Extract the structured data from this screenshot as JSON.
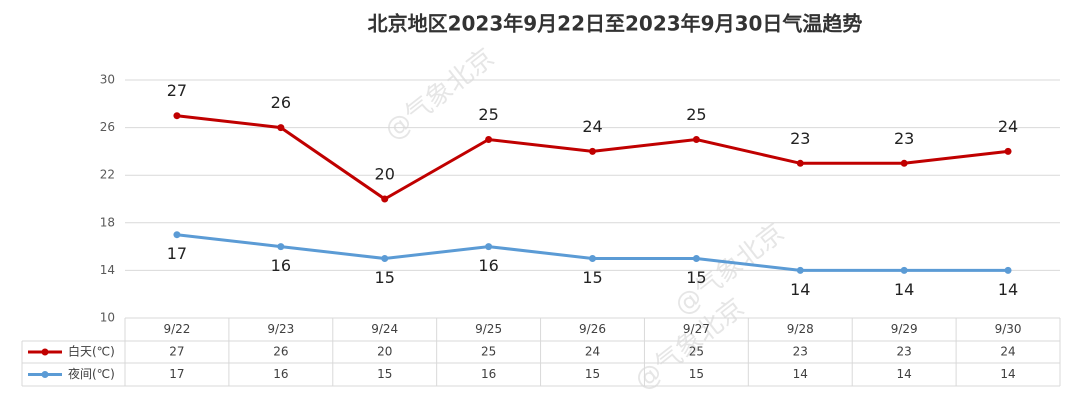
{
  "chart_data": {
    "type": "line",
    "title": "北京地区2023年9月22日至2023年9月30日气温趋势",
    "watermark": "@气象北京",
    "categories": [
      "9/22",
      "9/23",
      "9/24",
      "9/25",
      "9/26",
      "9/27",
      "9/28",
      "9/29",
      "9/30"
    ],
    "series": [
      {
        "name": "白天(℃)",
        "color": "#c00000",
        "values": [
          27,
          26,
          20,
          25,
          24,
          25,
          23,
          23,
          24
        ]
      },
      {
        "name": "夜间(℃)",
        "color": "#5b9bd5",
        "values": [
          17,
          16,
          15,
          16,
          15,
          15,
          14,
          14,
          14
        ]
      }
    ],
    "ylim": [
      10,
      30
    ],
    "yticks": [
      10,
      14,
      18,
      22,
      26,
      30
    ],
    "grid": true,
    "data_table": true
  }
}
